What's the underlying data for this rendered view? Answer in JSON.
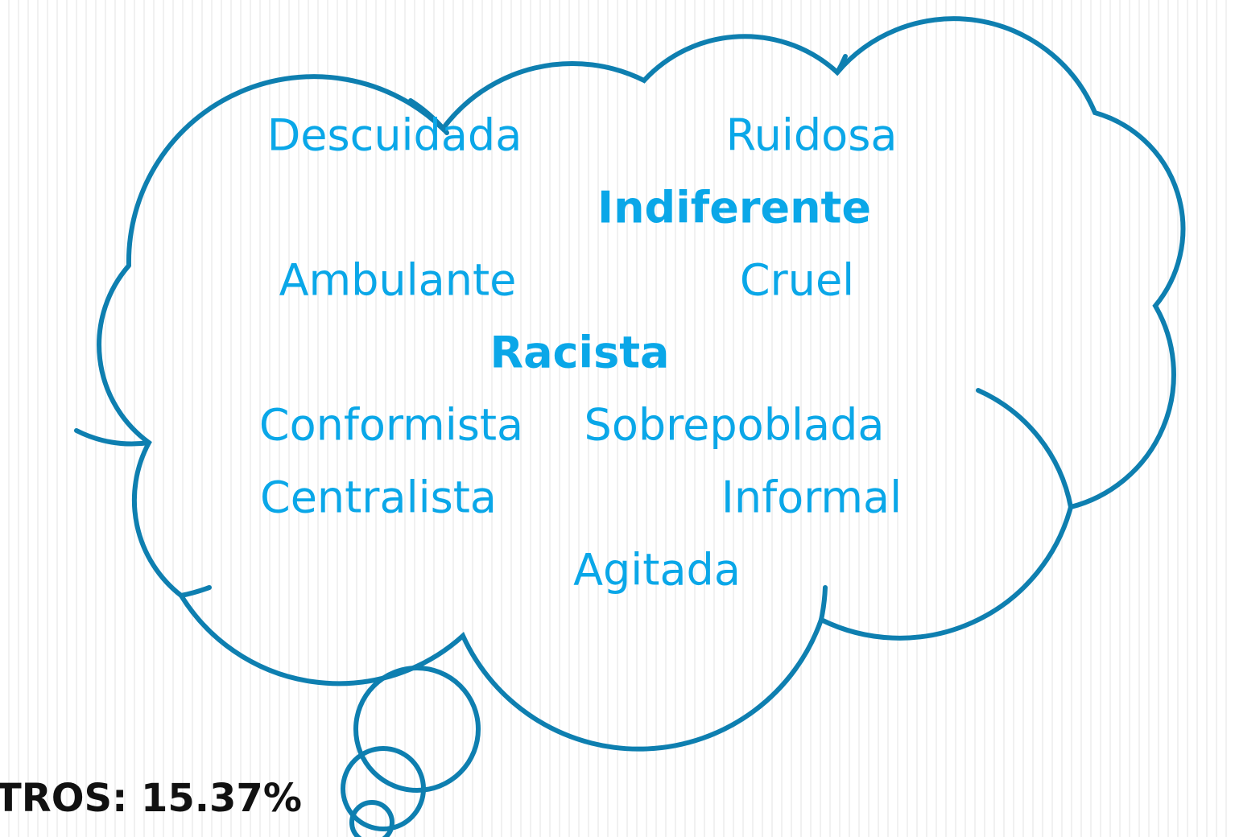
{
  "words": [
    {
      "text": "Descuidada",
      "bold": false
    },
    {
      "text": "Ruidosa",
      "bold": false
    },
    {
      "text": "Indiferente",
      "bold": true
    },
    {
      "text": "Ambulante",
      "bold": false
    },
    {
      "text": "Cruel",
      "bold": false
    },
    {
      "text": "Racista",
      "bold": true
    },
    {
      "text": "Conformista",
      "bold": false
    },
    {
      "text": "Sobrepoblada",
      "bold": false
    },
    {
      "text": "Centralista",
      "bold": false
    },
    {
      "text": "Informal",
      "bold": false
    },
    {
      "text": "Agitada",
      "bold": false
    }
  ],
  "footer": {
    "text": "TROS: 15.37%"
  }
}
